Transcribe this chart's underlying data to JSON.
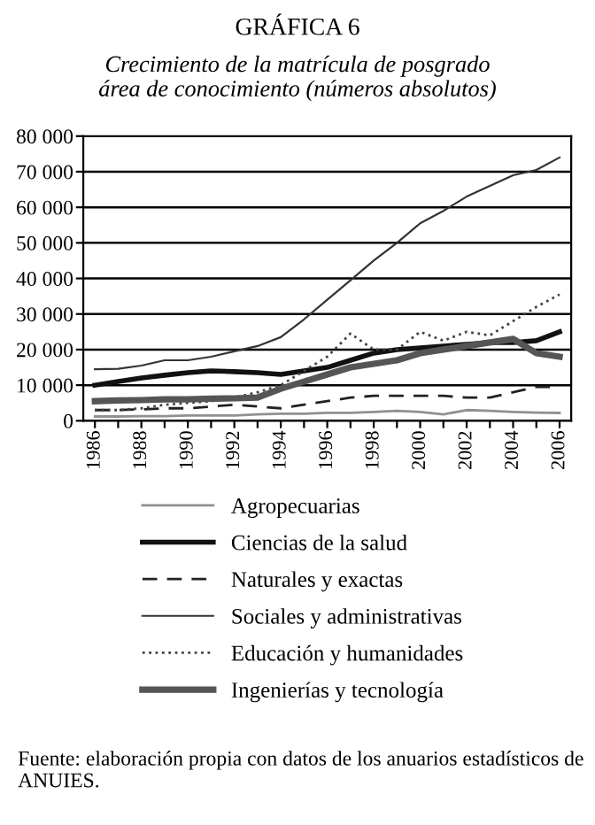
{
  "chart_data": {
    "type": "line",
    "title": "GRÁFICA 6",
    "subtitle": "Crecimiento de la matrícula de posgrado\nárea de conocimiento (números absolutos)",
    "x": [
      1986,
      1987,
      1988,
      1989,
      1990,
      1991,
      1992,
      1993,
      1994,
      1995,
      1996,
      1997,
      1998,
      1999,
      2000,
      2001,
      2002,
      2003,
      2004,
      2005,
      2006
    ],
    "series": [
      {
        "name": "Agropecuarias",
        "color": "#909090",
        "line_style": "solid",
        "values": [
          1200,
          1200,
          1300,
          1300,
          1500,
          1500,
          1500,
          1800,
          2000,
          2000,
          2200,
          2200,
          2500,
          2800,
          2500,
          1800,
          3000,
          2800,
          2500,
          2300,
          2200
        ]
      },
      {
        "name": "Ciencias de la salud",
        "color": "#111111",
        "line_style": "solid",
        "values": [
          10000,
          11000,
          12000,
          12800,
          13500,
          14000,
          13800,
          13500,
          13000,
          14000,
          15000,
          17000,
          19000,
          20000,
          20500,
          21000,
          21500,
          22000,
          22000,
          22500,
          25000
        ]
      },
      {
        "name": "Naturales y exactas",
        "color": "#222222",
        "line_style": "dashed",
        "values": [
          3000,
          3000,
          3200,
          3500,
          3500,
          4000,
          4500,
          4000,
          3500,
          4500,
          5500,
          6500,
          7000,
          7000,
          7000,
          7000,
          6500,
          6500,
          8000,
          9500,
          9500
        ]
      },
      {
        "name": "Sociales y administrativas",
        "color": "#333333",
        "line_style": "solid",
        "values": [
          14500,
          14600,
          15500,
          17000,
          17000,
          18000,
          19500,
          21000,
          23500,
          28500,
          34000,
          39500,
          45000,
          50000,
          55500,
          59000,
          63000,
          66000,
          69000,
          70500,
          74000
        ]
      },
      {
        "name": "Educación y humanidades",
        "color": "#444444",
        "line_style": "dotted",
        "values": [
          3000,
          3000,
          3500,
          4500,
          5000,
          5500,
          6500,
          8000,
          10000,
          14000,
          18000,
          24500,
          20000,
          20000,
          25000,
          22500,
          25000,
          24000,
          28000,
          32000,
          35500
        ]
      },
      {
        "name": "Ingenierías y tecnología",
        "color": "#555555",
        "line_style": "solid",
        "values": [
          5500,
          5700,
          5800,
          6000,
          6000,
          6200,
          6300,
          6500,
          9000,
          11000,
          13000,
          15000,
          16000,
          17000,
          19000,
          20000,
          21000,
          22000,
          23000,
          19000,
          18000
        ]
      }
    ],
    "xlim": [
      1985.5,
      2006.5
    ],
    "xticks": [
      1986,
      {
        "value": 1987,
        "label": null
      },
      1988,
      {
        "value": 1989,
        "label": null
      },
      1990,
      {
        "value": 1991,
        "label": null
      },
      1992,
      {
        "value": 1993,
        "label": null
      },
      1994,
      {
        "value": 1995,
        "label": null
      },
      1996,
      {
        "value": 1997,
        "label": null
      },
      1998,
      {
        "value": 1999,
        "label": null
      },
      2000,
      {
        "value": 2001,
        "label": null
      },
      2002,
      {
        "value": 2003,
        "label": null
      },
      2004,
      {
        "value": 2005,
        "label": null
      },
      2006
    ],
    "ylim": [
      0,
      80000
    ],
    "yticks": [
      0,
      {
        "value": 10000,
        "label": "10 000"
      },
      {
        "value": 20000,
        "label": "20 000"
      },
      {
        "value": 30000,
        "label": "30 000"
      },
      {
        "value": 40000,
        "label": "40 000"
      },
      {
        "value": 50000,
        "label": "50 000"
      },
      {
        "value": 60000,
        "label": "60 000"
      },
      {
        "value": 70000,
        "label": "70 000"
      },
      {
        "value": 80000,
        "label": "80 000"
      }
    ],
    "grid": "y",
    "legend": "bottom",
    "marker": "none",
    "annotations": [
      "Fuente: elaboración propia con datos de los anuarios estadísticos de ANUIES."
    ]
  }
}
